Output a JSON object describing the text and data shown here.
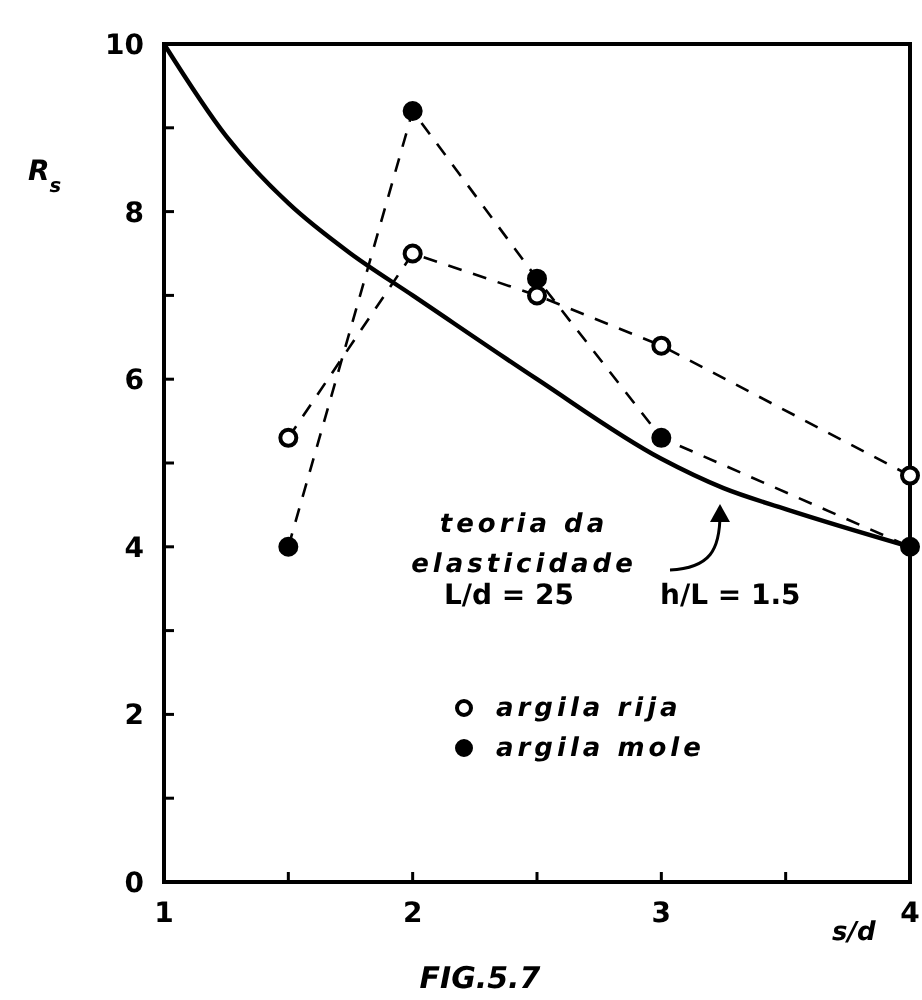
{
  "chart_data": {
    "type": "line",
    "xlabel": "s/d",
    "ylabel": "R$_{s}$",
    "xlim": [
      1,
      4
    ],
    "ylim": [
      0,
      10
    ],
    "xticks": [
      1,
      {
        "value": 1.5,
        "label": null
      },
      2,
      {
        "value": 2.5,
        "label": null
      },
      3,
      {
        "value": 3.5,
        "label": null
      },
      4
    ],
    "yticks": [
      0,
      {
        "value": 1,
        "label": null
      },
      2,
      {
        "value": 3,
        "label": null
      },
      4,
      {
        "value": 5,
        "label": null
      },
      6,
      {
        "value": 7,
        "label": null
      },
      8,
      {
        "value": 9,
        "label": null
      },
      10
    ],
    "grid": false,
    "legend": "bottom",
    "series": [
      {
        "name": "argila rija",
        "color": "#000000",
        "marker": "circle",
        "line_style": "dashed",
        "x": [
          1.5,
          2,
          2.5,
          3,
          4
        ],
        "values": [
          5.3,
          7.5,
          7.0,
          6.4,
          4.85
        ]
      },
      {
        "name": "argila mole",
        "color": "#000000",
        "marker": "circle",
        "line_style": "dashed",
        "x": [
          1.5,
          2,
          2.5,
          3,
          4
        ],
        "values": [
          4.0,
          9.2,
          7.2,
          5.3,
          4.0
        ]
      },
      {
        "name": "teoria da elasticidade",
        "color": "#000000",
        "marker": "none",
        "line_style": "solid",
        "x": [
          1,
          1.25,
          1.5,
          1.75,
          2,
          2.5,
          3,
          3.25,
          3.5,
          4
        ],
        "values": [
          10,
          8.9,
          8.1,
          7.5,
          7.0,
          6.0,
          5.05,
          4.7,
          4.45,
          4.0
        ]
      }
    ],
    "annotations": [
      "L/d = 25",
      "h/L = 1.5",
      "FIG.5.7"
    ]
  }
}
